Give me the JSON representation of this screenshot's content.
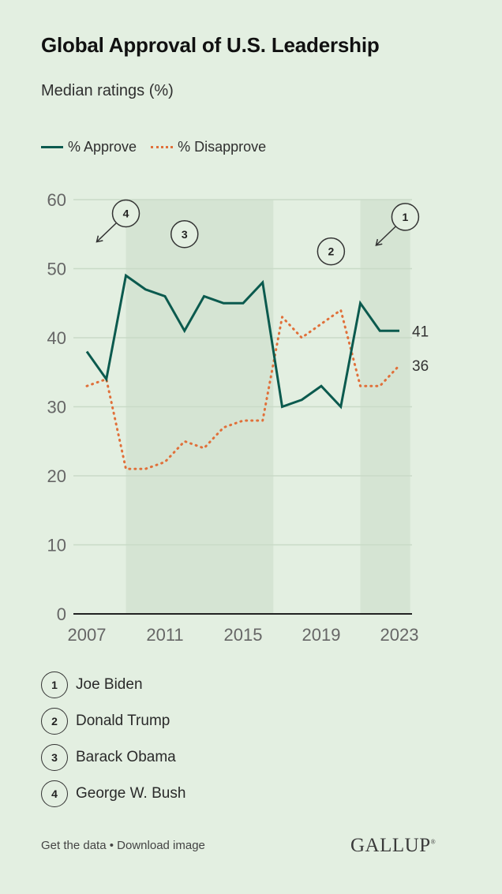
{
  "title": "Global Approval of U.S. Leadership",
  "subtitle": "Median ratings (%)",
  "legend": {
    "approve": "% Approve",
    "disapprove": "% Disapprove"
  },
  "colors": {
    "approve": "#0b5a4e",
    "disapprove": "#e0703a",
    "shade": "#d5e4d3",
    "grid": "#c9dac7",
    "background": "#e3efe1"
  },
  "presidents": [
    {
      "num": "1",
      "name": "Joe Biden"
    },
    {
      "num": "2",
      "name": "Donald Trump"
    },
    {
      "num": "3",
      "name": "Barack Obama"
    },
    {
      "num": "4",
      "name": "George W. Bush"
    }
  ],
  "footer": {
    "get_data": "Get the data",
    "separator": "•",
    "download": "Download image"
  },
  "logo": "GALLUP",
  "chart_data": {
    "type": "line",
    "x": [
      2007,
      2008,
      2009,
      2010,
      2011,
      2012,
      2013,
      2014,
      2015,
      2016,
      2017,
      2018,
      2019,
      2020,
      2021,
      2022,
      2023
    ],
    "series": [
      {
        "name": "% Approve",
        "values": [
          38,
          34,
          49,
          47,
          46,
          41,
          46,
          45,
          45,
          48,
          30,
          31,
          33,
          30,
          45,
          41,
          41
        ],
        "end_label": "41"
      },
      {
        "name": "% Disapprove",
        "values": [
          33,
          34,
          21,
          21,
          22,
          25,
          24,
          27,
          28,
          28,
          43,
          40,
          42,
          44,
          33,
          33,
          36
        ],
        "end_label": "36"
      }
    ],
    "xticks": [
      "2007",
      "2011",
      "2015",
      "2019",
      "2023"
    ],
    "yticks": [
      "0",
      "10",
      "20",
      "30",
      "40",
      "50",
      "60"
    ],
    "ylim": [
      0,
      60
    ],
    "shaded_periods": [
      {
        "label": "3",
        "from": 2009,
        "to": 2016
      },
      {
        "label": "1",
        "from": 2021,
        "to": 2023
      }
    ],
    "period_markers": [
      {
        "label": "4",
        "x": 2009,
        "y": 58
      },
      {
        "label": "3",
        "x": 2012,
        "y": 55
      },
      {
        "label": "2",
        "x": 2019.5,
        "y": 52.5
      },
      {
        "label": "1",
        "x": 2023.3,
        "y": 57.5
      }
    ],
    "grid": true
  }
}
